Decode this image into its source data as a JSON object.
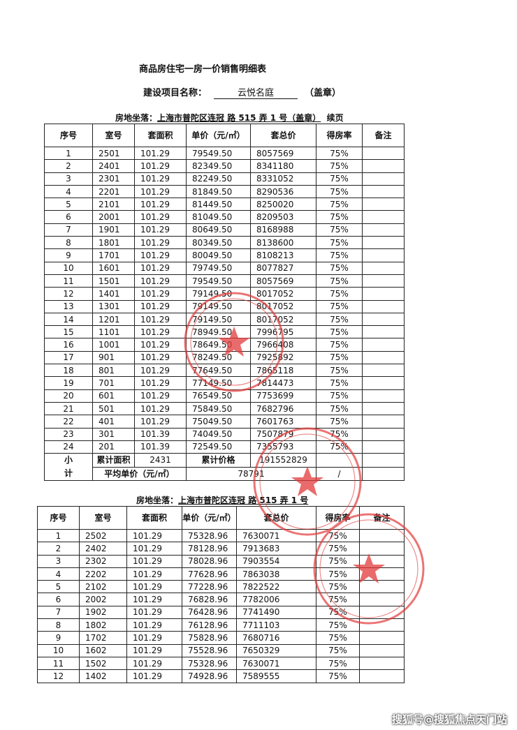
{
  "title": "商品房住宅一房一价销售明细表",
  "project": {
    "label": "建设项目名称：",
    "name": "云悦名庭",
    "seal": "（盖章）"
  },
  "table1": {
    "location": {
      "label": "房地坐落：",
      "address": "上海市普陀区连冠 路 515 弄 1 号（盖章）",
      "suffix": "续页"
    },
    "header": [
      "序号",
      "室号",
      "套面积",
      "单价（元/㎡）",
      "套总价",
      "得房率",
      "备注"
    ],
    "rows": [
      [
        "1",
        "2501",
        "101.29",
        "79549.50",
        "8057569",
        "75%"
      ],
      [
        "2",
        "2401",
        "101.29",
        "82349.50",
        "8341180",
        "75%"
      ],
      [
        "3",
        "2301",
        "101.29",
        "82249.50",
        "8331052",
        "75%"
      ],
      [
        "4",
        "2201",
        "101.29",
        "81849.50",
        "8290536",
        "75%"
      ],
      [
        "5",
        "2101",
        "101.29",
        "81449.50",
        "8250020",
        "75%"
      ],
      [
        "6",
        "2001",
        "101.29",
        "81049.50",
        "8209503",
        "75%"
      ],
      [
        "7",
        "1901",
        "101.29",
        "80649.50",
        "8168988",
        "75%"
      ],
      [
        "8",
        "1801",
        "101.29",
        "80349.50",
        "8138600",
        "75%"
      ],
      [
        "9",
        "1701",
        "101.29",
        "80049.50",
        "8108213",
        "75%"
      ],
      [
        "10",
        "1601",
        "101.29",
        "79749.50",
        "8077827",
        "75%"
      ],
      [
        "11",
        "1501",
        "101.29",
        "79549.50",
        "8057569",
        "75%"
      ],
      [
        "12",
        "1401",
        "101.29",
        "79149.50",
        "8017052",
        "75%"
      ],
      [
        "13",
        "1301",
        "101.29",
        "79149.50",
        "8017052",
        "75%"
      ],
      [
        "14",
        "1201",
        "101.29",
        "79149.50",
        "8017052",
        "75%"
      ],
      [
        "15",
        "1101",
        "101.29",
        "78949.50",
        "7996795",
        "75%"
      ],
      [
        "16",
        "1001",
        "101.29",
        "78649.50",
        "7966408",
        "75%"
      ],
      [
        "17",
        "901",
        "101.29",
        "78249.50",
        "7925892",
        "75%"
      ],
      [
        "18",
        "801",
        "101.29",
        "77649.50",
        "7865118",
        "75%"
      ],
      [
        "19",
        "701",
        "101.29",
        "77149.50",
        "7814473",
        "75%"
      ],
      [
        "20",
        "601",
        "101.29",
        "76549.50",
        "7753699",
        "75%"
      ],
      [
        "21",
        "501",
        "101.29",
        "75849.50",
        "7682796",
        "75%"
      ],
      [
        "22",
        "401",
        "101.29",
        "75049.50",
        "7601763",
        "75%"
      ],
      [
        "23",
        "301",
        "101.39",
        "74049.50",
        "7507879",
        "75%"
      ],
      [
        "24",
        "201",
        "101.39",
        "72549.50",
        "7355793",
        "75%"
      ]
    ],
    "summary": {
      "label": "小计",
      "area_label": "累计面积",
      "area": "2431",
      "price_label": "累计价格",
      "price": "191552829",
      "avg_label": "平均单价（元/㎡）",
      "avg": "78791",
      "ratio": "/"
    }
  },
  "table2": {
    "location": {
      "label": "房地坐落：",
      "address": "上海市普陀区连冠 路 515 弄 1 号"
    },
    "header": [
      "序号",
      "室号",
      "套面积",
      "单价（元/㎡）",
      "套总价",
      "得房率",
      "备注"
    ],
    "rows": [
      [
        "1",
        "2502",
        "101.29",
        "75328.96",
        "7630071",
        "75%"
      ],
      [
        "2",
        "2402",
        "101.29",
        "78128.96",
        "7913683",
        "75%"
      ],
      [
        "3",
        "2302",
        "101.29",
        "78028.96",
        "7903554",
        "75%"
      ],
      [
        "4",
        "2202",
        "101.29",
        "77628.96",
        "7863038",
        "75%"
      ],
      [
        "5",
        "2102",
        "101.29",
        "77228.96",
        "7822522",
        "75%"
      ],
      [
        "6",
        "2002",
        "101.29",
        "76828.96",
        "7782006",
        "75%"
      ],
      [
        "7",
        "1902",
        "101.29",
        "76428.96",
        "7741490",
        "75%"
      ],
      [
        "8",
        "1802",
        "101.29",
        "76128.96",
        "7711103",
        "75%"
      ],
      [
        "9",
        "1702",
        "101.29",
        "75828.96",
        "7680716",
        "75%"
      ],
      [
        "10",
        "1602",
        "101.29",
        "75528.96",
        "7650329",
        "75%"
      ],
      [
        "11",
        "1502",
        "101.29",
        "75328.96",
        "7630071",
        "75%"
      ],
      [
        "12",
        "1402",
        "101.29",
        "74928.96",
        "7589555",
        "75%"
      ]
    ]
  },
  "watermark": "搜狐号@搜狐焦点天门站"
}
